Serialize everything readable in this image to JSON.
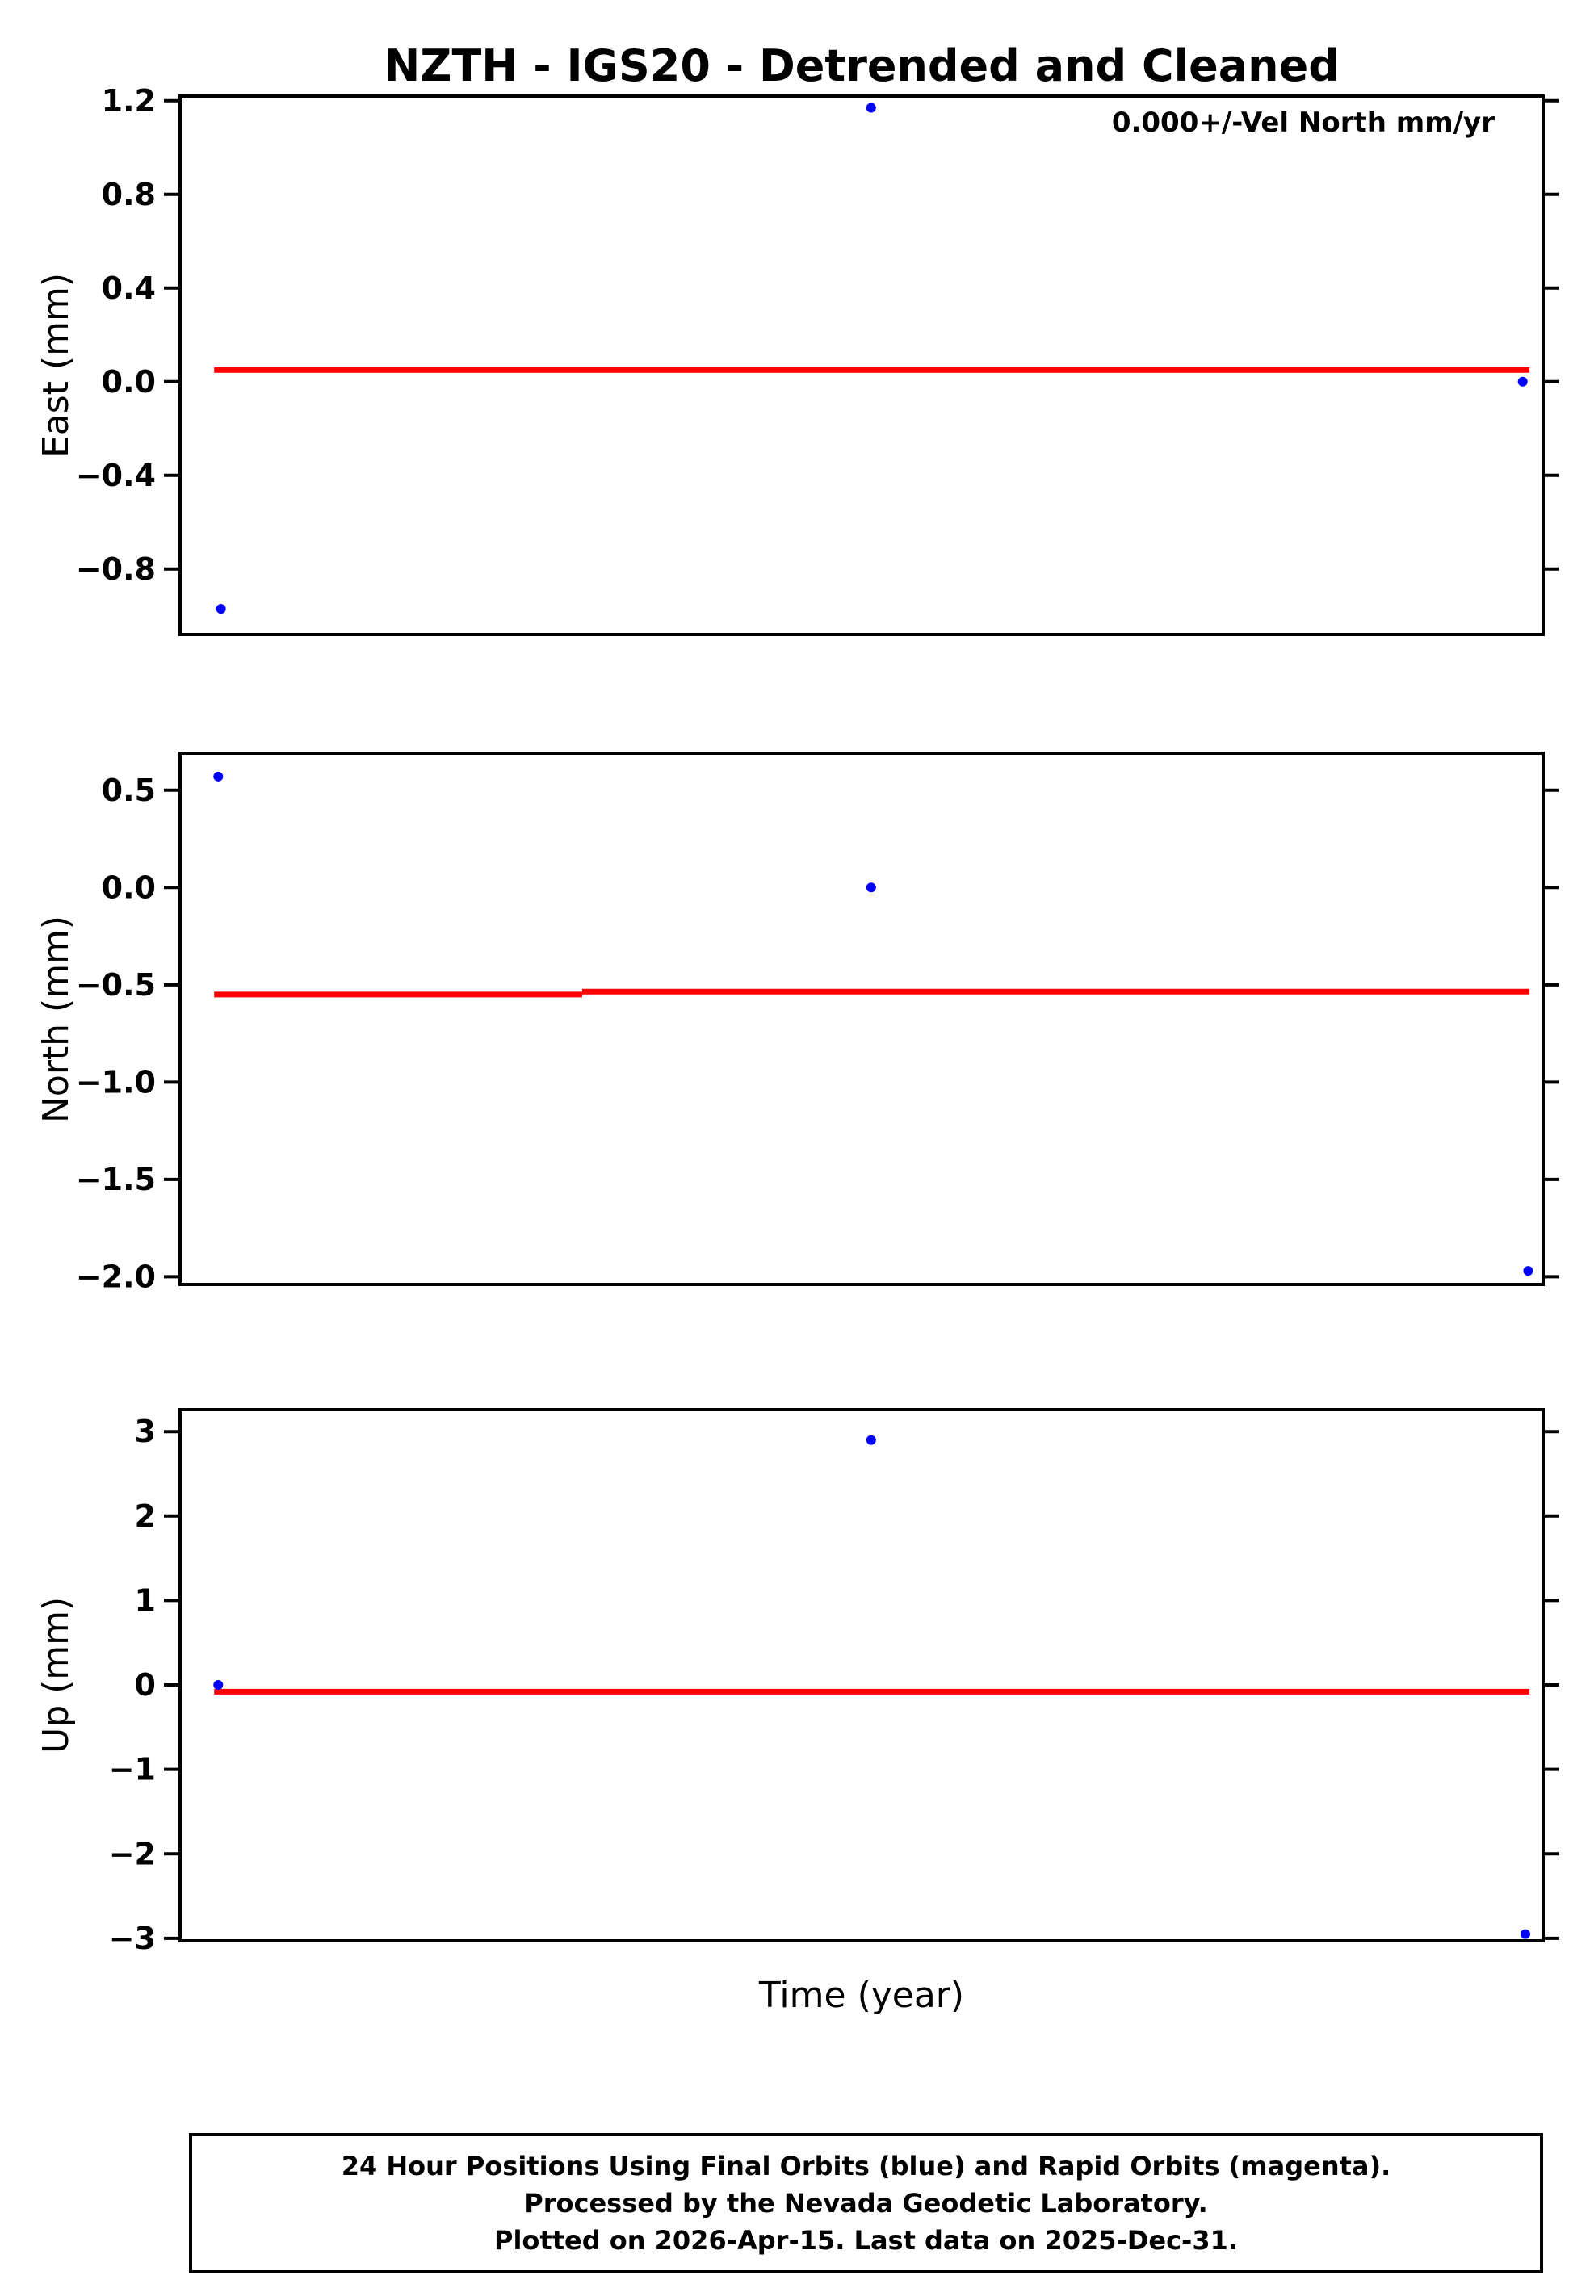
{
  "page": {
    "title": "NZTH - IGS20 - Detrended and Cleaned",
    "xlabel": "Time (year)"
  },
  "colors": {
    "point": "#0000ff",
    "trend": "#ff0000",
    "axis": "#000000",
    "background": "#ffffff"
  },
  "chart_data": [
    {
      "type": "scatter",
      "name": "east",
      "ylabel": "East (mm)",
      "ylim": [
        -1.08,
        1.22
      ],
      "yticks": [
        {
          "value": 1.2,
          "label": "1.2"
        },
        {
          "value": 0.8,
          "label": "0.8"
        },
        {
          "value": 0.4,
          "label": "0.4"
        },
        {
          "value": 0.0,
          "label": "0.0"
        },
        {
          "value": -0.4,
          "label": "−0.4"
        },
        {
          "value": -0.8,
          "label": "−0.8"
        }
      ],
      "x_units": "axis-fraction (no x tick labels shown)",
      "points": [
        {
          "x": 0.03,
          "y": -0.97
        },
        {
          "x": 0.507,
          "y": 1.17
        },
        {
          "x": 0.985,
          "y": 0.0
        }
      ],
      "trend": [
        {
          "x0": 0.025,
          "x1": 0.99,
          "y": 0.05
        }
      ],
      "annotation": "0.000+/-Vel North mm/yr"
    },
    {
      "type": "scatter",
      "name": "north",
      "ylabel": "North (mm)",
      "ylim": [
        -2.04,
        0.69
      ],
      "yticks": [
        {
          "value": 0.5,
          "label": "0.5"
        },
        {
          "value": 0.0,
          "label": "0.0"
        },
        {
          "value": -0.5,
          "label": "−0.5"
        },
        {
          "value": -1.0,
          "label": "−1.0"
        },
        {
          "value": -1.5,
          "label": "−1.5"
        },
        {
          "value": -2.0,
          "label": "−2.0"
        }
      ],
      "x_units": "axis-fraction (no x tick labels shown)",
      "points": [
        {
          "x": 0.028,
          "y": 0.57
        },
        {
          "x": 0.507,
          "y": 0.0
        },
        {
          "x": 0.989,
          "y": -1.97
        }
      ],
      "trend": [
        {
          "x0": 0.025,
          "x1": 0.295,
          "y": -0.55
        },
        {
          "x0": 0.295,
          "x1": 0.99,
          "y": -0.535
        }
      ]
    },
    {
      "type": "scatter",
      "name": "up",
      "ylabel": "Up (mm)",
      "ylim": [
        -3.03,
        3.26
      ],
      "yticks": [
        {
          "value": 3,
          "label": "3"
        },
        {
          "value": 2,
          "label": "2"
        },
        {
          "value": 1,
          "label": "1"
        },
        {
          "value": 0,
          "label": "0"
        },
        {
          "value": -1,
          "label": "−1"
        },
        {
          "value": -2,
          "label": "−2"
        },
        {
          "value": -3,
          "label": "−3"
        }
      ],
      "x_units": "axis-fraction (no x tick labels shown)",
      "points": [
        {
          "x": 0.028,
          "y": 0.0
        },
        {
          "x": 0.507,
          "y": 2.9
        },
        {
          "x": 0.987,
          "y": -2.95
        }
      ],
      "trend": [
        {
          "x0": 0.025,
          "x1": 0.99,
          "y": -0.08
        }
      ]
    }
  ],
  "footer": {
    "lines": [
      "24 Hour Positions Using Final Orbits (blue) and Rapid Orbits (magenta).",
      "Processed by the Nevada Geodetic Laboratory.",
      "Plotted on 2026-Apr-15. Last data on 2025-Dec-31."
    ]
  }
}
